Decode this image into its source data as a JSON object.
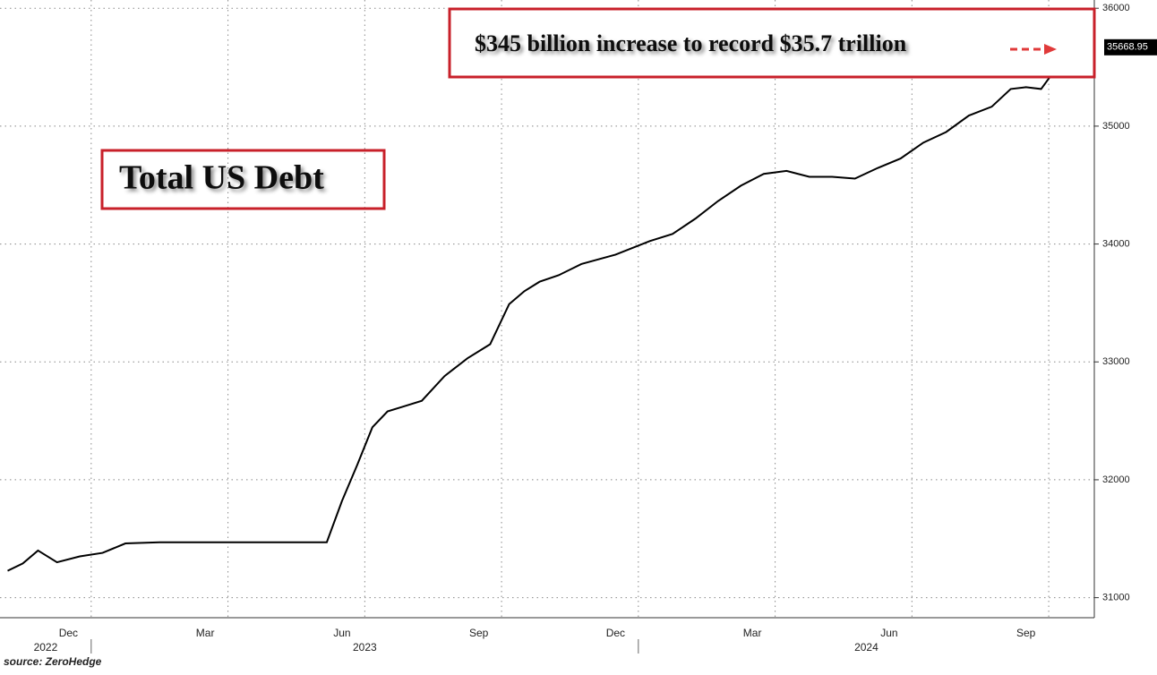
{
  "chart_data": {
    "type": "line",
    "title": "Total US Debt",
    "annotation": "$345 billion increase to record $35.7 trillion",
    "source": "source: ZeroHedge",
    "x": [
      "2022-11",
      "2022-11",
      "2022-11",
      "2022-12",
      "2022-12",
      "2023-01",
      "2023-01",
      "2023-02",
      "2023-03",
      "2023-04",
      "2023-05",
      "2023-06",
      "2023-06",
      "2023-06",
      "2023-07",
      "2023-07",
      "2023-07",
      "2023-08",
      "2023-08",
      "2023-09",
      "2023-09",
      "2023-10",
      "2023-10",
      "2023-10",
      "2023-11",
      "2023-11",
      "2023-12",
      "2024-01",
      "2024-01",
      "2024-02",
      "2024-02",
      "2024-03",
      "2024-03",
      "2024-04",
      "2024-04",
      "2024-05",
      "2024-05",
      "2024-06",
      "2024-06",
      "2024-07",
      "2024-07",
      "2024-08",
      "2024-08",
      "2024-09",
      "2024-09",
      "2024-09",
      "2024-10"
    ],
    "series": [
      {
        "name": "Total US Debt",
        "color": "#000000",
        "values": [
          31228,
          31290,
          31400,
          31300,
          31350,
          31380,
          31460,
          31470,
          31470,
          31470,
          31470,
          31470,
          31820,
          32125,
          32445,
          32580,
          32620,
          32670,
          32880,
          33030,
          33150,
          33490,
          33600,
          33680,
          33735,
          33830,
          33910,
          34025,
          34085,
          34215,
          34365,
          34495,
          34595,
          34620,
          34570,
          34570,
          34555,
          34645,
          34725,
          34860,
          34950,
          35090,
          35165,
          35315,
          35330,
          35315,
          35668.95
        ]
      }
    ],
    "xlim": [
      "2022-11",
      "2024-10"
    ],
    "xticks": [
      {
        "value": "2022-12",
        "label": "Dec"
      },
      {
        "value": "2023-03",
        "label": "Mar"
      },
      {
        "value": "2023-06",
        "label": "Jun"
      },
      {
        "value": "2023-09",
        "label": "Sep"
      },
      {
        "value": "2023-12",
        "label": "Dec"
      },
      {
        "value": "2024-03",
        "label": "Mar"
      },
      {
        "value": "2024-06",
        "label": "Jun"
      },
      {
        "value": "2024-09",
        "label": "Sep"
      }
    ],
    "years": [
      "2022",
      "2023",
      "2024"
    ],
    "ylim": [
      30830,
      36070
    ],
    "yticks": [
      31000,
      32000,
      33000,
      34000,
      35000,
      36000
    ],
    "grid": true
  }
}
